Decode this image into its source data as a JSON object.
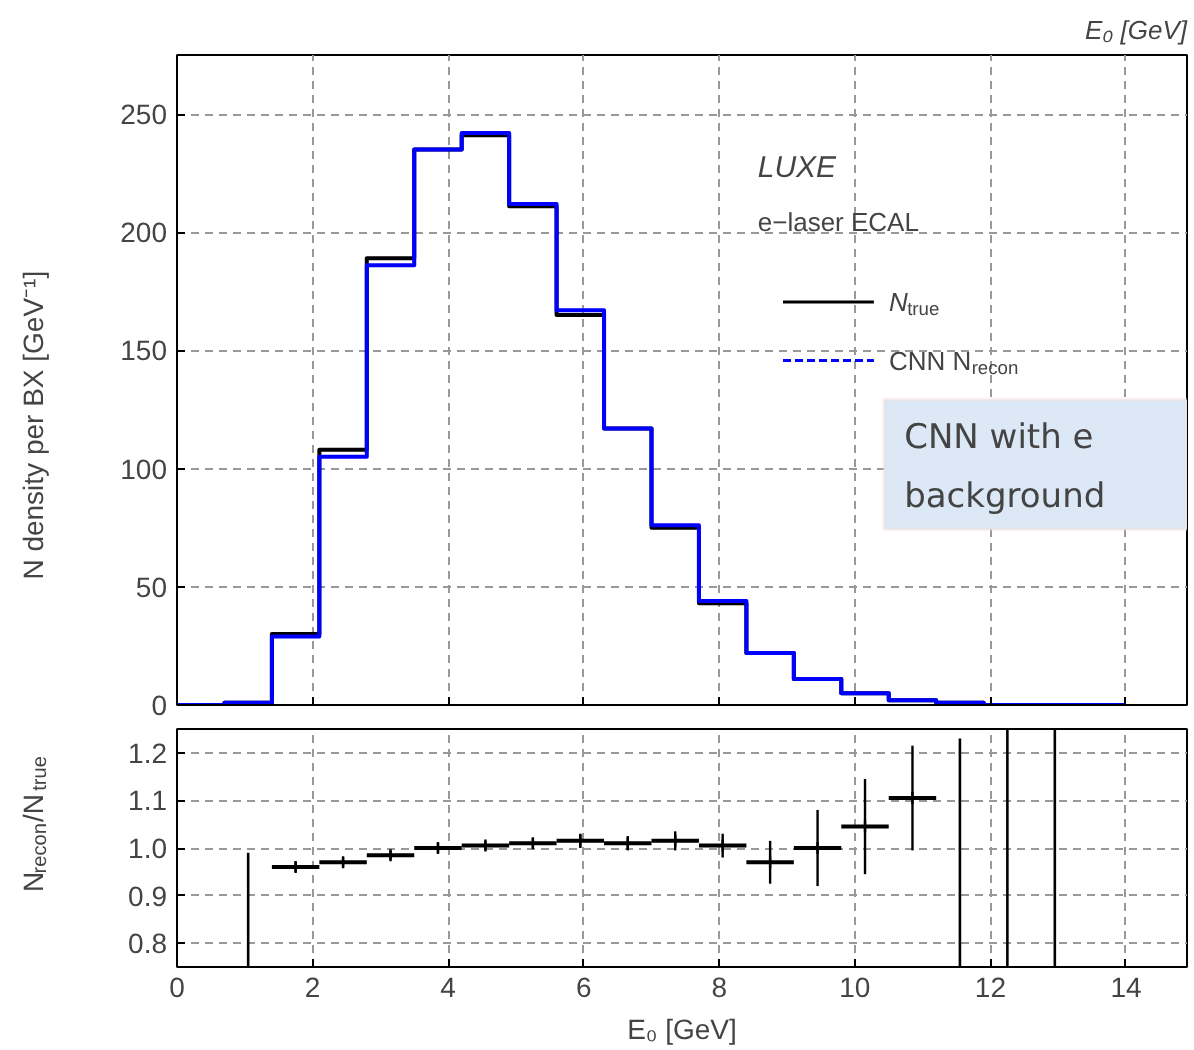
{
  "chart_data": [
    {
      "type": "histogram",
      "title": "E₀ [GeV]",
      "ylabel": "N density per BX [GeV⁻¹]",
      "bins": [
        0,
        0.7,
        1.4,
        2.1,
        2.8,
        3.5,
        4.2,
        4.9,
        5.6,
        6.3,
        7.0,
        7.7,
        8.4,
        9.1,
        9.8,
        10.5,
        11.2,
        11.9,
        12.6,
        13.3,
        14.0
      ],
      "series": [
        {
          "name": "N$_{true}$",
          "color": "#000000",
          "values": [
            0,
            1,
            30,
            108,
            189,
            235,
            241,
            211,
            165,
            117,
            75,
            43,
            22,
            11,
            5,
            2,
            1,
            0,
            0,
            0
          ]
        },
        {
          "name": "CNN N$_{recon}$",
          "color": "#0000ff",
          "values": [
            0,
            1,
            29,
            105,
            186,
            235,
            242,
            212,
            167,
            117,
            76,
            44,
            22,
            11,
            5,
            2,
            1,
            0,
            0,
            0
          ]
        }
      ],
      "xlim": [
        0,
        14.9
      ],
      "ylim": [
        0,
        275
      ],
      "xticks": [
        0,
        2,
        4,
        6,
        8,
        10,
        12,
        14
      ],
      "yticks": [
        0,
        50,
        100,
        150,
        200,
        250
      ],
      "tick_labels": "y",
      "grid": true,
      "legend": "top right",
      "annotations": [
        "LUXE",
        "e−laser ECAL",
        "CNN with e",
        "background"
      ]
    },
    {
      "type": "scatter",
      "xlabel": "E₀ [GeV]",
      "ylabel": "N$_{recon}$/N$_{true}$",
      "marker": "cross",
      "series": [
        {
          "type": "scatter",
          "color": "#000000",
          "x": [
            1.75,
            2.45,
            3.15,
            3.85,
            4.55,
            5.25,
            5.95,
            6.65,
            7.35,
            8.05,
            8.75,
            9.45,
            10.15,
            10.85
          ],
          "values": [
            0.96,
            0.97,
            0.985,
            1.0,
            1.005,
            1.01,
            1.015,
            1.01,
            1.015,
            1.005,
            0.97,
            1.0,
            1.045,
            1.105
          ],
          "errors": [
            0.01,
            0.01,
            0.01,
            0.01,
            0.01,
            0.01,
            0.015,
            0.015,
            0.02,
            0.025,
            0.045,
            0.08,
            0.1,
            0.11
          ],
          "xerrors": [
            0.35,
            0.35,
            0.35,
            0.35,
            0.35,
            0.35,
            0.35,
            0.35,
            0.35,
            0.35,
            0.35,
            0.35,
            0.35,
            0.35
          ]
        },
        {
          "type": "line",
          "color": "#000000",
          "marker": "none",
          "x": [
            1.05,
            1.05
          ],
          "values": [
            0.75,
            0.99
          ]
        },
        {
          "type": "line",
          "color": "#000000",
          "marker": "none",
          "x": [
            11.55,
            11.55
          ],
          "values": [
            0.75,
            1.23
          ]
        },
        {
          "type": "line",
          "color": "#000000",
          "marker": "none",
          "x": [
            12.25,
            12.25
          ],
          "values": [
            0.75,
            1.25
          ]
        },
        {
          "type": "line",
          "color": "#000000",
          "marker": "none",
          "x": [
            12.95,
            12.95
          ],
          "values": [
            0.75,
            1.25
          ]
        }
      ],
      "xlim": [
        0,
        14.9
      ],
      "ylim": [
        0.75,
        1.25
      ],
      "xticks": [
        0,
        2,
        4,
        6,
        8,
        10,
        12,
        14
      ],
      "yticks": [
        {
          "value": 0.8,
          "label": "0.8"
        },
        {
          "value": 0.9,
          "label": "0.9"
        },
        {
          "value": 1.0,
          "label": "1.0"
        },
        {
          "value": 1.1,
          "label": "1.1"
        },
        {
          "value": 1.2,
          "label": "1.2"
        }
      ],
      "grid": true
    }
  ]
}
